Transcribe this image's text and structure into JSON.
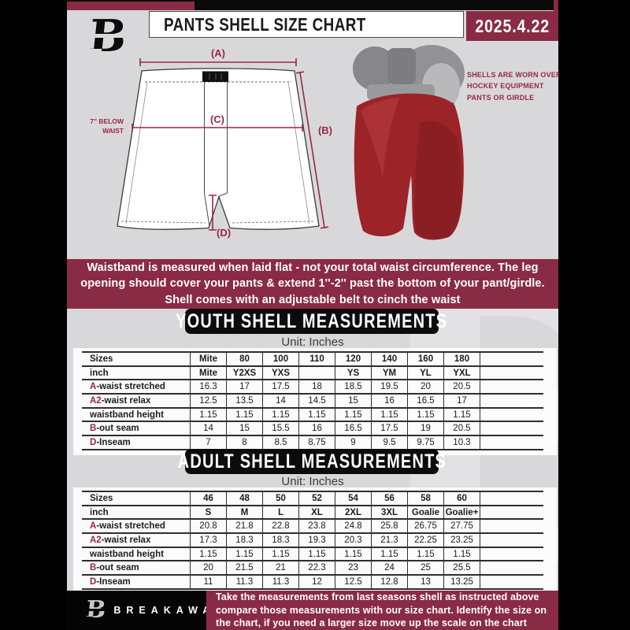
{
  "colors": {
    "maroon": "#8a2b45",
    "label_red": "#9b2643",
    "bg_gray": "#d8d8da",
    "banner_black": "#0c0c0c"
  },
  "header": {
    "logo_letter": "B",
    "title": "PANTS SHELL SIZE CHART",
    "date": "2025.4.22"
  },
  "diagram": {
    "label_a": "(A)",
    "label_b": "(B)",
    "label_c": "(C)",
    "label_d": "(D)",
    "below_waist_note": "7'' BELOW WAIST",
    "side_note": "SHELLS ARE WORN OVER HOCKEY EQUIPMENT PANTS OR GIRDLE"
  },
  "info_banner": "Waistband is measured when laid flat - not your total waist circumference. The leg opening should cover your pants & extend 1''-2'' past the bottom of your pant/girdle. Shell comes with an adjustable belt to cinch the waist",
  "youth": {
    "title": "YOUTH SHELL MEASUREMENTS",
    "unit": "Unit: Inches",
    "rows": [
      {
        "label": "Sizes",
        "header": true,
        "values": [
          "Mite",
          "80",
          "100",
          "110",
          "120",
          "140",
          "160",
          "180"
        ]
      },
      {
        "label": "inch",
        "header": true,
        "values": [
          "Mite",
          "Y2XS",
          "YXS",
          "",
          "YS",
          "YM",
          "YL",
          "YXL"
        ]
      },
      {
        "prefix": "A",
        "label": "-waist stretched",
        "values": [
          "16.3",
          "17",
          "17.5",
          "18",
          "18.5",
          "19.5",
          "20",
          "20.5"
        ]
      },
      {
        "prefix": "A2",
        "label": "-waist relax",
        "values": [
          "12.5",
          "13.5",
          "14",
          "14.5",
          "15",
          "16",
          "16.5",
          "17"
        ]
      },
      {
        "label": "waistband height",
        "values": [
          "1.15",
          "1.15",
          "1.15",
          "1.15",
          "1.15",
          "1.15",
          "1.15",
          "1.15"
        ]
      },
      {
        "prefix": "B",
        "label": "-out seam",
        "values": [
          "14",
          "15",
          "15.5",
          "16",
          "16.5",
          "17.5",
          "19",
          "20.5"
        ]
      },
      {
        "prefix": "D",
        "label": "-Inseam",
        "values": [
          "7",
          "8",
          "8.5",
          "8.75",
          "9",
          "9.5",
          "9.75",
          "10.3"
        ]
      }
    ]
  },
  "adult": {
    "title": "ADULT SHELL MEASUREMENTS",
    "unit": "Unit: Inches",
    "rows": [
      {
        "label": "Sizes",
        "header": true,
        "values": [
          "46",
          "48",
          "50",
          "52",
          "54",
          "56",
          "58",
          "60"
        ]
      },
      {
        "label": "inch",
        "header": true,
        "values": [
          "S",
          "M",
          "L",
          "XL",
          "2XL",
          "3XL",
          "Goalie",
          "Goalie+"
        ]
      },
      {
        "prefix": "A",
        "label": "-waist stretched",
        "values": [
          "20.8",
          "21.8",
          "22.8",
          "23.8",
          "24.8",
          "25.8",
          "26.75",
          "27.75"
        ]
      },
      {
        "prefix": "A2",
        "label": "-waist relax",
        "values": [
          "17.3",
          "18.3",
          "18.3",
          "19.3",
          "20.3",
          "21.3",
          "22.25",
          "23.25"
        ]
      },
      {
        "label": "waistband height",
        "values": [
          "1.15",
          "1.15",
          "1.15",
          "1.15",
          "1.15",
          "1.15",
          "1.15",
          "1.15"
        ]
      },
      {
        "prefix": "B",
        "label": "-out seam",
        "values": [
          "20",
          "21.5",
          "21",
          "22.3",
          "23",
          "24",
          "25",
          "25.5"
        ]
      },
      {
        "prefix": "D",
        "label": "-Inseam",
        "values": [
          "11",
          "11.3",
          "11.3",
          "12",
          "12.5",
          "12.8",
          "13",
          "13.25"
        ]
      }
    ]
  },
  "footer": {
    "brand": "BREAKAWAY",
    "logo_letter": "B",
    "note": "Take the measurements from last seasons shell as instructed above compare those measurements  with our size chart. Identify the size on the chart, if you need a larger size move up the scale on the chart"
  },
  "watermark_letter": "B"
}
